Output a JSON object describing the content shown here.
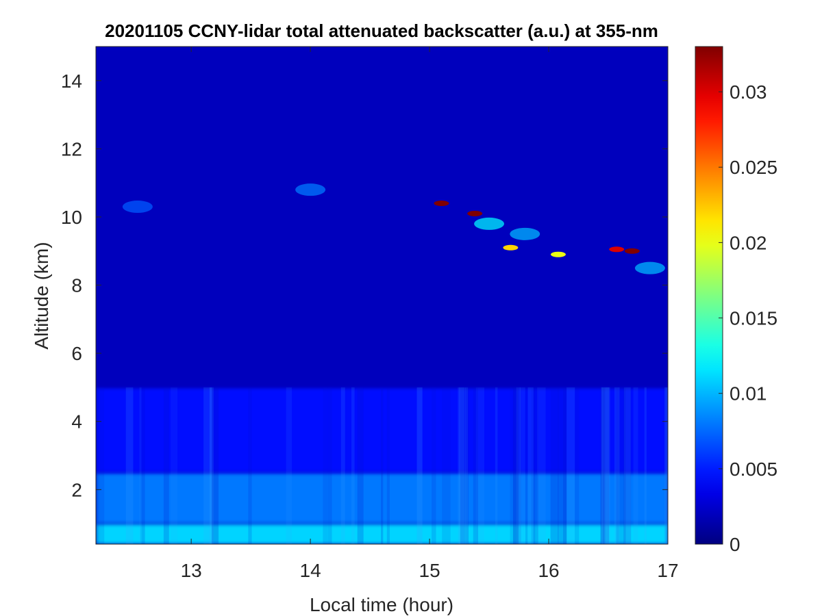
{
  "chart_data": {
    "type": "heatmap",
    "title": "20201105 CCNY-lidar total attenuated backscatter (a.u.) at 355-nm",
    "xlabel": "Local time (hour)",
    "ylabel": "Altitude (km)",
    "xlim": [
      12.2,
      17.0
    ],
    "ylim": [
      0.4,
      15.0
    ],
    "x_ticks": [
      13,
      14,
      15,
      16,
      17
    ],
    "y_ticks": [
      2,
      4,
      6,
      8,
      10,
      12,
      14
    ],
    "colorbar": {
      "colormap": "jet",
      "range": [
        0,
        0.033
      ],
      "ticks": [
        0,
        0.005,
        0.01,
        0.015,
        0.02,
        0.025,
        0.03
      ],
      "tick_labels": [
        "0",
        "0.005",
        "0.01",
        "0.015",
        "0.02",
        "0.025",
        "0.03"
      ]
    },
    "background_value": 0.002,
    "boundary_layer": [
      {
        "altitude_range": [
          0.4,
          1.0
        ],
        "value": 0.011
      },
      {
        "altitude_range": [
          1.0,
          2.5
        ],
        "value": 0.008
      },
      {
        "altitude_range": [
          2.5,
          5.0
        ],
        "value": 0.0045
      },
      {
        "altitude_range": [
          5.0,
          15.0
        ],
        "value": 0.002
      }
    ],
    "cloud_features": [
      {
        "time": 15.1,
        "altitude": 10.4,
        "value": 0.033
      },
      {
        "time": 15.38,
        "altitude": 10.1,
        "value": 0.033
      },
      {
        "time": 15.68,
        "altitude": 9.1,
        "value": 0.022
      },
      {
        "time": 16.08,
        "altitude": 8.9,
        "value": 0.02
      },
      {
        "time": 15.5,
        "altitude": 9.8,
        "value": 0.012
      },
      {
        "time": 15.8,
        "altitude": 9.5,
        "value": 0.01
      },
      {
        "time": 16.57,
        "altitude": 9.05,
        "value": 0.03
      },
      {
        "time": 16.7,
        "altitude": 9.0,
        "value": 0.033
      },
      {
        "time": 16.85,
        "altitude": 8.5,
        "value": 0.01
      },
      {
        "time": 14.0,
        "altitude": 10.8,
        "value": 0.008
      },
      {
        "time": 12.55,
        "altitude": 10.3,
        "value": 0.007
      }
    ]
  }
}
